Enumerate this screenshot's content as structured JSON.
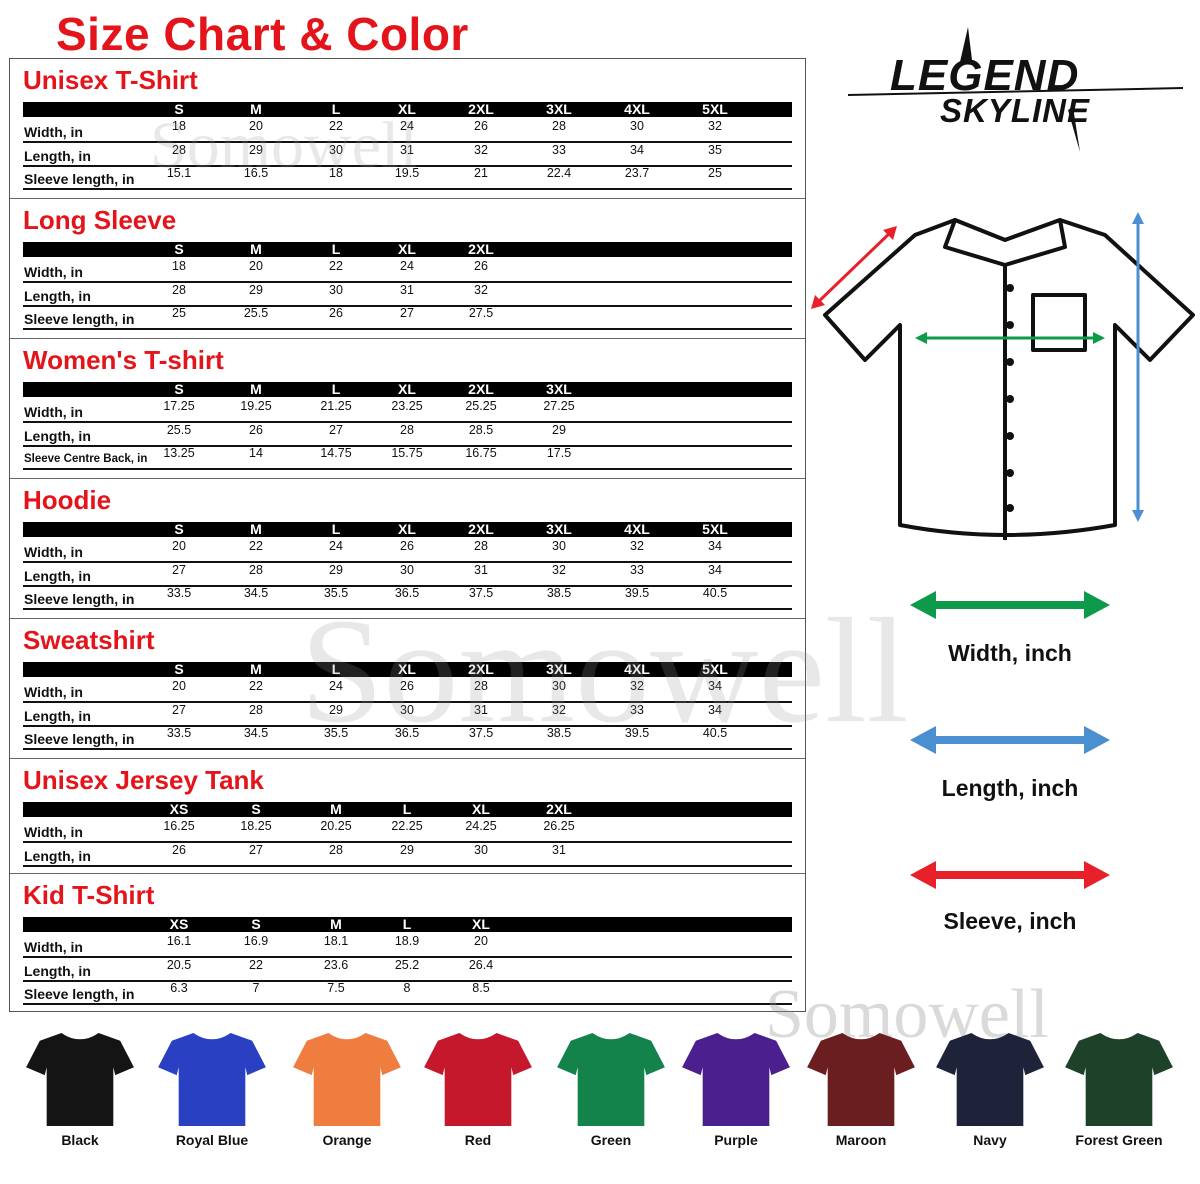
{
  "page_title": "Size Chart & Color",
  "brand": {
    "logo_text": [
      "LEGEND",
      "SKYLINE"
    ]
  },
  "watermark": "Somowell",
  "sections": [
    {
      "title": "Unisex T-Shirt",
      "sizes": [
        "S",
        "M",
        "L",
        "XL",
        "2XL",
        "3XL",
        "4XL",
        "5XL"
      ],
      "rows": [
        {
          "label": "Width, in",
          "values": [
            "18",
            "20",
            "22",
            "24",
            "26",
            "28",
            "30",
            "32"
          ]
        },
        {
          "label": "Length, in",
          "values": [
            "28",
            "29",
            "30",
            "31",
            "32",
            "33",
            "34",
            "35"
          ]
        },
        {
          "label": "Sleeve length, in",
          "values": [
            "15.1",
            "16.5",
            "18",
            "19.5",
            "21",
            "22.4",
            "23.7",
            "25"
          ]
        }
      ]
    },
    {
      "title": "Long Sleeve",
      "sizes": [
        "S",
        "M",
        "L",
        "XL",
        "2XL"
      ],
      "rows": [
        {
          "label": "Width, in",
          "values": [
            "18",
            "20",
            "22",
            "24",
            "26"
          ]
        },
        {
          "label": "Length, in",
          "values": [
            "28",
            "29",
            "30",
            "31",
            "32"
          ]
        },
        {
          "label": "Sleeve length, in",
          "values": [
            "25",
            "25.5",
            "26",
            "27",
            "27.5"
          ]
        }
      ]
    },
    {
      "title": "Women's T-shirt",
      "sizes": [
        "S",
        "M",
        "L",
        "XL",
        "2XL",
        "3XL"
      ],
      "rows": [
        {
          "label": "Width, in",
          "values": [
            "17.25",
            "19.25",
            "21.25",
            "23.25",
            "25.25",
            "27.25"
          ]
        },
        {
          "label": "Length, in",
          "values": [
            "25.5",
            "26",
            "27",
            "28",
            "28.5",
            "29"
          ]
        },
        {
          "label": "Sleeve Centre Back, in",
          "values": [
            "13.25",
            "14",
            "14.75",
            "15.75",
            "16.75",
            "17.5"
          ]
        }
      ]
    },
    {
      "title": "Hoodie",
      "sizes": [
        "S",
        "M",
        "L",
        "XL",
        "2XL",
        "3XL",
        "4XL",
        "5XL"
      ],
      "rows": [
        {
          "label": "Width, in",
          "values": [
            "20",
            "22",
            "24",
            "26",
            "28",
            "30",
            "32",
            "34"
          ]
        },
        {
          "label": "Length, in",
          "values": [
            "27",
            "28",
            "29",
            "30",
            "31",
            "32",
            "33",
            "34"
          ]
        },
        {
          "label": "Sleeve length, in",
          "values": [
            "33.5",
            "34.5",
            "35.5",
            "36.5",
            "37.5",
            "38.5",
            "39.5",
            "40.5"
          ]
        }
      ]
    },
    {
      "title": "Sweatshirt",
      "sizes": [
        "S",
        "M",
        "L",
        "XL",
        "2XL",
        "3XL",
        "4XL",
        "5XL"
      ],
      "rows": [
        {
          "label": "Width, in",
          "values": [
            "20",
            "22",
            "24",
            "26",
            "28",
            "30",
            "32",
            "34"
          ]
        },
        {
          "label": "Length, in",
          "values": [
            "27",
            "28",
            "29",
            "30",
            "31",
            "32",
            "33",
            "34"
          ]
        },
        {
          "label": "Sleeve length, in",
          "values": [
            "33.5",
            "34.5",
            "35.5",
            "36.5",
            "37.5",
            "38.5",
            "39.5",
            "40.5"
          ]
        }
      ]
    },
    {
      "title": "Unisex Jersey Tank",
      "sizes": [
        "XS",
        "S",
        "M",
        "L",
        "XL",
        "2XL"
      ],
      "rows": [
        {
          "label": "Width, in",
          "values": [
            "16.25",
            "18.25",
            "20.25",
            "22.25",
            "24.25",
            "26.25"
          ]
        },
        {
          "label": "Length, in",
          "values": [
            "26",
            "27",
            "28",
            "29",
            "30",
            "31"
          ]
        }
      ]
    },
    {
      "title": "Kid T-Shirt",
      "sizes": [
        "XS",
        "S",
        "M",
        "L",
        "XL"
      ],
      "rows": [
        {
          "label": "Width, in",
          "values": [
            "16.1",
            "16.9",
            "18.1",
            "18.9",
            "20"
          ]
        },
        {
          "label": "Length, in",
          "values": [
            "20.5",
            "22",
            "23.6",
            "25.2",
            "26.4"
          ]
        },
        {
          "label": "Sleeve length, in",
          "values": [
            "6.3",
            "7",
            "7.5",
            "8",
            "8.5"
          ]
        }
      ]
    }
  ],
  "legend": [
    {
      "label": "Width, inch",
      "color": "#0d9a4a"
    },
    {
      "label": "Length, inch",
      "color": "#4a8fd0"
    },
    {
      "label": "Sleeve, inch",
      "color": "#e8202a"
    }
  ],
  "colors": [
    {
      "name": "Black",
      "hex": "#141414"
    },
    {
      "name": "Royal Blue",
      "hex": "#2a40c2"
    },
    {
      "name": "Orange",
      "hex": "#ef7d40"
    },
    {
      "name": "Red",
      "hex": "#c6182d"
    },
    {
      "name": "Green",
      "hex": "#13824b"
    },
    {
      "name": "Purple",
      "hex": "#4b1f8e"
    },
    {
      "name": "Maroon",
      "hex": "#6b1e1f"
    },
    {
      "name": "Navy",
      "hex": "#1f2339"
    },
    {
      "name": "Forest Green",
      "hex": "#1e4229"
    }
  ]
}
